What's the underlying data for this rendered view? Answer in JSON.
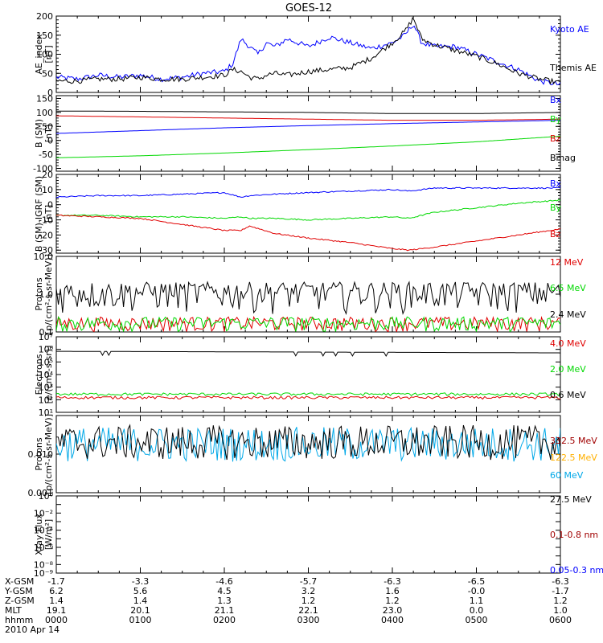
{
  "title": "GOES-12",
  "colors": {
    "black": "#000000",
    "blue": "#0000ff",
    "green": "#00d800",
    "red": "#e00000",
    "darkred": "#a00000",
    "orange": "#ffb000",
    "cyan": "#00a8e8",
    "yellow": "#e8e800"
  },
  "chart_data": [
    {
      "type": "line",
      "id": "ae",
      "ylabel": [
        "AE_index",
        "[nT]"
      ],
      "scale": "linear",
      "ylim": [
        0,
        200
      ],
      "ticks": [
        0,
        50,
        100,
        150,
        200
      ],
      "tick_labels": [
        "0",
        "50",
        "100",
        "150",
        "200"
      ],
      "x_hours": [
        0,
        0.25,
        0.5,
        0.75,
        1.0,
        1.25,
        1.5,
        1.75,
        2.0,
        2.1,
        2.2,
        2.3,
        2.4,
        2.5,
        2.6,
        2.75,
        3.0,
        3.25,
        3.5,
        3.75,
        4.0,
        4.15,
        4.25,
        4.35,
        4.5,
        4.75,
        5.0,
        5.25,
        5.5,
        5.75,
        6.0
      ],
      "series": [
        {
          "name": "Kyoto AE",
          "color": "blue",
          "values": [
            40,
            35,
            45,
            40,
            45,
            35,
            40,
            50,
            55,
            75,
            140,
            120,
            100,
            130,
            120,
            140,
            120,
            145,
            130,
            115,
            130,
            150,
            180,
            130,
            120,
            120,
            100,
            80,
            60,
            30,
            20
          ]
        },
        {
          "name": "Themis AE",
          "color": "black",
          "values": [
            30,
            30,
            35,
            35,
            40,
            35,
            35,
            40,
            45,
            60,
            55,
            40,
            35,
            45,
            50,
            45,
            55,
            60,
            65,
            90,
            130,
            160,
            195,
            140,
            125,
            110,
            95,
            75,
            50,
            35,
            25
          ]
        }
      ],
      "legend": [
        "Kyoto AE",
        "Themis AE"
      ]
    },
    {
      "type": "line",
      "id": "bsm",
      "ylabel": [
        "B (SM)",
        "[nT]"
      ],
      "scale": "linear",
      "ylim": [
        -110,
        160
      ],
      "ticks": [
        -100,
        -50,
        0,
        50,
        100,
        150
      ],
      "tick_labels": [
        "-100",
        "-50",
        "0",
        "50",
        "100",
        "150"
      ],
      "x_hours": [
        0,
        1,
        2,
        3,
        4,
        5,
        6
      ],
      "series": [
        {
          "name": "Bx",
          "color": "blue",
          "values": [
            25,
            35,
            45,
            53,
            60,
            66,
            72
          ]
        },
        {
          "name": "By",
          "color": "green",
          "values": [
            -62,
            -55,
            -45,
            -33,
            -20,
            -5,
            15
          ]
        },
        {
          "name": "Bz",
          "color": "red",
          "values": [
            88,
            84,
            80,
            76,
            72,
            72,
            76
          ]
        },
        {
          "name": "Bmag",
          "color": "black",
          "values": [
            105,
            104,
            102,
            100,
            96,
            96,
            100
          ]
        }
      ],
      "legend": [
        "Bx",
        "By",
        "Bz",
        "Bmag"
      ]
    },
    {
      "type": "line",
      "id": "bigrf",
      "ylabel": [
        "B (SM)-IGRF (SM)",
        "[nT]"
      ],
      "scale": "linear",
      "ylim": [
        -32,
        20
      ],
      "ticks": [
        -30,
        -20,
        -10,
        0,
        10,
        20
      ],
      "tick_labels": [
        "-30",
        "-20",
        "-10",
        "0",
        "10",
        "20"
      ],
      "x_hours": [
        0,
        0.5,
        1,
        1.5,
        2,
        2.2,
        2.3,
        2.6,
        3,
        3.5,
        4,
        4.2,
        4.5,
        5,
        5.5,
        6
      ],
      "series": [
        {
          "name": "Bx",
          "color": "blue",
          "values": [
            5,
            6,
            6,
            7,
            8,
            5,
            6,
            7,
            8,
            9,
            10,
            9,
            11,
            11,
            11,
            11
          ]
        },
        {
          "name": "By",
          "color": "green",
          "values": [
            -7,
            -7,
            -8,
            -8,
            -9,
            -8,
            -9,
            -9,
            -10,
            -9,
            -8,
            -9,
            -5,
            -2,
            1,
            3
          ]
        },
        {
          "name": "Bz",
          "color": "red",
          "values": [
            -7,
            -8,
            -9,
            -13,
            -17,
            -17,
            -14,
            -19,
            -22,
            -25,
            -29,
            -30,
            -28,
            -24,
            -20,
            -16
          ]
        }
      ],
      "legend": [
        "Bx",
        "By",
        "Bz"
      ]
    },
    {
      "type": "line",
      "id": "protons_low",
      "ylabel": [
        "Protons",
        "[p/(cm²-s-sr-MeV)]"
      ],
      "scale": "log",
      "ylim_log": [
        -1,
        1
      ],
      "ticks": [
        -1,
        0,
        1
      ],
      "tick_labels": [
        "0.1",
        "1.0",
        "10.0"
      ],
      "series": [
        {
          "name": "12 MeV",
          "color": "red",
          "level": 0.1
        },
        {
          "name": "6.5 MeV",
          "color": "green",
          "level": 0.15
        },
        {
          "name": "2.4 MeV",
          "color": "black",
          "level": 0.8
        }
      ],
      "legend": [
        "12 MeV",
        "6.5 MeV",
        "2.4 MeV"
      ]
    },
    {
      "type": "line",
      "id": "electrons",
      "ylabel": [
        "Electrons",
        "[e/(cm²-s-sr)]"
      ],
      "scale": "log",
      "ylim_log": [
        1,
        7
      ],
      "ticks": [
        1,
        2,
        3,
        4,
        5,
        6,
        7
      ],
      "tick_labels": [
        "10¹",
        "10²",
        "10³",
        "10⁴",
        "10⁵",
        "10⁶",
        "10⁷"
      ],
      "series": [
        {
          "name": "4.0 MeV",
          "color": "red",
          "level": 150
        },
        {
          "name": "2.0 MeV",
          "color": "green",
          "level": 280
        },
        {
          "name": "0.6 MeV",
          "color": "black",
          "level": 700000
        }
      ],
      "legend": [
        "4.0 MeV",
        "2.0 MeV",
        "0.6 MeV"
      ]
    },
    {
      "type": "line",
      "id": "protons_high",
      "ylabel": [
        "Protons",
        "[p/(cm²-s-sr-MeV)]"
      ],
      "scale": "log",
      "ylim_log": [
        -3,
        -1
      ],
      "ticks": [
        -3,
        -2,
        -1
      ],
      "tick_labels": [
        "0.001",
        "0.010",
        ""
      ],
      "series": [
        {
          "name": "332.5 MeV",
          "color": "darkred",
          "level": null
        },
        {
          "name": "122.5 MeV",
          "color": "orange",
          "level": null
        },
        {
          "name": "60 MeV",
          "color": "cyan",
          "level": 0.018
        },
        {
          "name": "27.5 MeV",
          "color": "black",
          "level": 0.02
        }
      ],
      "legend": [
        "332.5 MeV",
        "122.5 MeV",
        "60 MeV",
        "27.5 MeV"
      ]
    },
    {
      "type": "line",
      "id": "xray",
      "ylabel": [
        "Xray  Flux",
        "[W/m²]"
      ],
      "scale": "log",
      "ylim_log": [
        -9,
        0
      ],
      "ticks": [
        -9,
        -8,
        -7,
        -6,
        -5,
        -4,
        -3,
        -2,
        -1,
        0
      ],
      "tick_labels": [
        "10⁻⁹",
        "10⁻⁸",
        "",
        "10⁻⁶",
        "",
        "10⁻⁴",
        "",
        "10⁻²",
        "",
        "10⁰"
      ],
      "series": [
        {
          "name": "0.1-0.8 nm",
          "color": "darkred",
          "level": null
        },
        {
          "name": "0.05-0.3 nm",
          "color": "blue",
          "level": null
        }
      ],
      "legend": [
        "0.1-0.8 nm",
        "0.05-0.3 nm"
      ]
    }
  ],
  "xaxis": {
    "rows": [
      {
        "label": "X-GSM",
        "values": [
          "-1.7",
          "-3.3",
          "-4.6",
          "-5.7",
          "-6.3",
          "-6.5",
          "-6.3"
        ]
      },
      {
        "label": "Y-GSM",
        "values": [
          "6.2",
          "5.6",
          "4.5",
          "3.2",
          "1.6",
          "-0.0",
          "-1.7"
        ]
      },
      {
        "label": "Z-GSM",
        "values": [
          "1.4",
          "1.4",
          "1.3",
          "1.2",
          "1.2",
          "1.1",
          "1.2"
        ]
      },
      {
        "label": "MLT",
        "values": [
          "19.1",
          "20.1",
          "21.1",
          "22.1",
          "23.0",
          "0.0",
          "1.0"
        ]
      },
      {
        "label": "hhmm",
        "values": [
          "0000",
          "0100",
          "0200",
          "0300",
          "0400",
          "0500",
          "0600"
        ]
      }
    ],
    "date": "2010 Apr 14"
  }
}
